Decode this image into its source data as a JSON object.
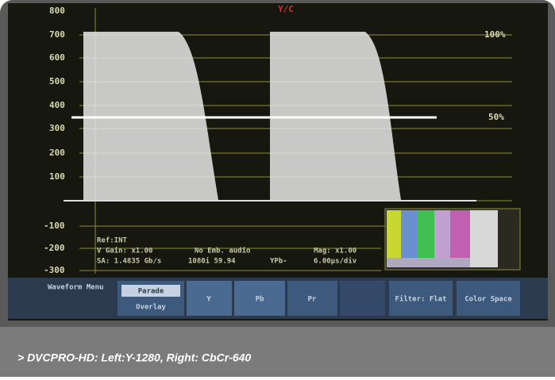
{
  "screen": {
    "mode_label": "Y/C",
    "scale": [
      "800",
      "700",
      "600",
      "500",
      "400",
      "300",
      "200",
      "100",
      "-100",
      "-200",
      "-300"
    ],
    "percent": [
      "100%",
      "50%"
    ],
    "status": {
      "ref": "Ref:INT",
      "gain": "V Gain: x1.00",
      "audio": "No Emb. audio",
      "mag": "Mag: x1.00",
      "rate": "SA: 1.4835 Gb/s",
      "format": "1080i 59.94",
      "channel": "YPb-",
      "sweep": "6.00µs/div"
    },
    "menu": {
      "title": "Waveform Menu",
      "parade": "Parade",
      "overlay": "Overlay",
      "y": "Y",
      "pb": "Pb",
      "pr": "Pr",
      "filter": "Filter: Flat",
      "color_space": "Color Space"
    }
  },
  "caption": "> DVCPRO-HD: Left:Y-1280, Right: CbCr-640"
}
